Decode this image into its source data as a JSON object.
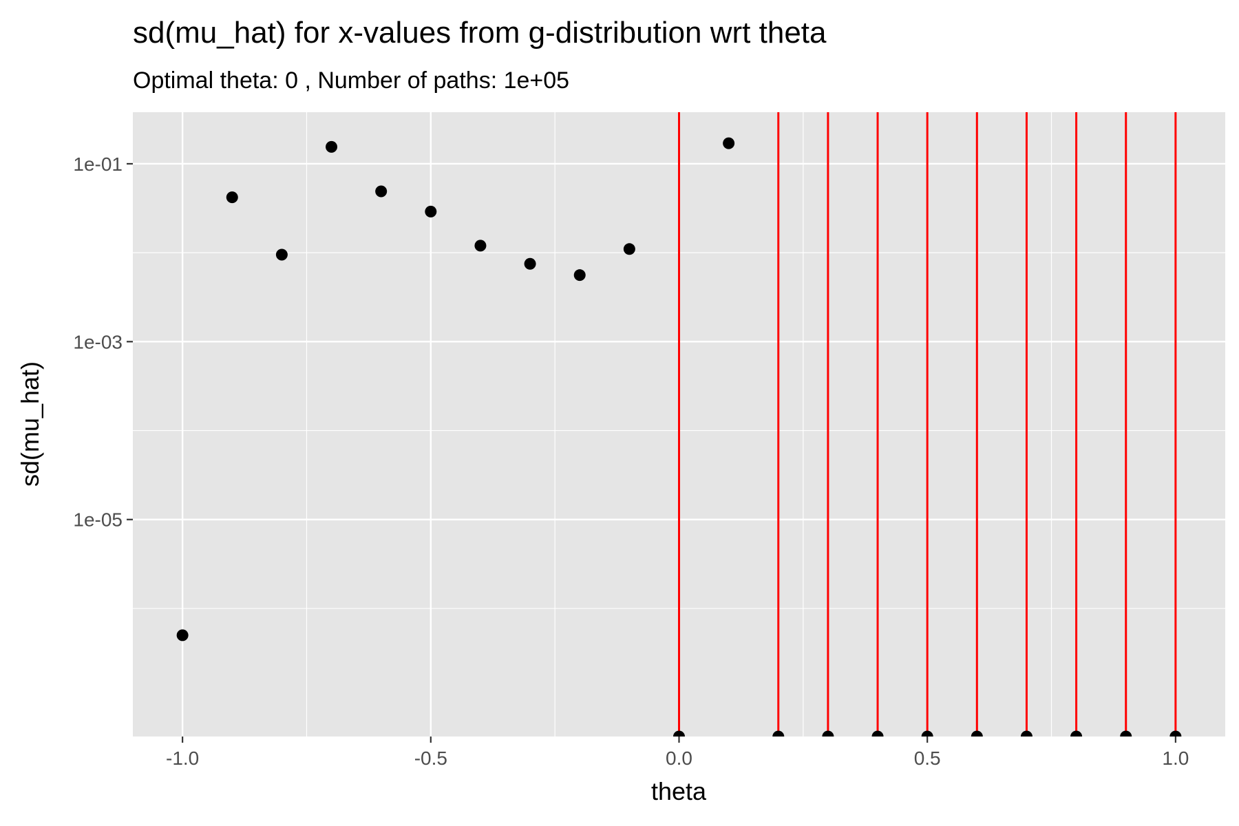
{
  "chart_data": {
    "type": "scatter",
    "title": "sd(mu_hat) for x-values from g-distribution wrt theta",
    "subtitle": "Optimal theta:  0 , Number of paths:  1e+05",
    "xlabel": "theta",
    "ylabel": "sd(mu_hat)",
    "x_scale": "linear",
    "y_scale": "log10",
    "xlim": [
      -1.1,
      1.1
    ],
    "ylim_log10": [
      -7.44,
      -0.42
    ],
    "x_ticks": [
      {
        "value": -1.0,
        "label": "-1.0"
      },
      {
        "value": -0.5,
        "label": "-0.5"
      },
      {
        "value": 0.0,
        "label": "0.0"
      },
      {
        "value": 0.5,
        "label": "0.5"
      },
      {
        "value": 1.0,
        "label": "1.0"
      }
    ],
    "y_ticks": [
      {
        "value": 0.1,
        "label": "1e-01"
      },
      {
        "value": 0.001,
        "label": "1e-03"
      },
      {
        "value": 1e-05,
        "label": "1e-05"
      }
    ],
    "grid": true,
    "background_color": "#e5e5e5",
    "point_color": "#000000",
    "vline_color": "#ff0000",
    "points": [
      {
        "x": -1.0,
        "y": 5e-07
      },
      {
        "x": -0.9,
        "y": 0.042
      },
      {
        "x": -0.8,
        "y": 0.0095
      },
      {
        "x": -0.7,
        "y": 0.155
      },
      {
        "x": -0.6,
        "y": 0.049
      },
      {
        "x": -0.5,
        "y": 0.029
      },
      {
        "x": -0.4,
        "y": 0.012
      },
      {
        "x": -0.3,
        "y": 0.0075
      },
      {
        "x": -0.2,
        "y": 0.0056
      },
      {
        "x": -0.1,
        "y": 0.011
      },
      {
        "x": 0.1,
        "y": 0.17
      },
      {
        "x": 0.0,
        "y": 0
      },
      {
        "x": 0.2,
        "y": 0
      },
      {
        "x": 0.3,
        "y": 0
      },
      {
        "x": 0.4,
        "y": 0
      },
      {
        "x": 0.5,
        "y": 0
      },
      {
        "x": 0.6,
        "y": 0
      },
      {
        "x": 0.7,
        "y": 0
      },
      {
        "x": 0.8,
        "y": 0
      },
      {
        "x": 0.9,
        "y": 0
      },
      {
        "x": 1.0,
        "y": 0
      }
    ],
    "vlines_x": [
      0.0,
      0.2,
      0.3,
      0.4,
      0.5,
      0.6,
      0.7,
      0.8,
      0.9,
      1.0
    ]
  }
}
